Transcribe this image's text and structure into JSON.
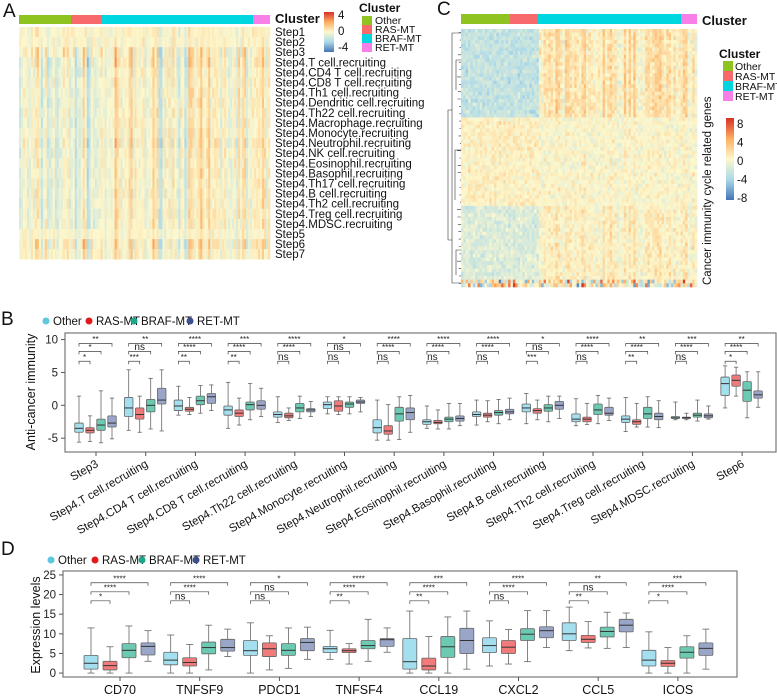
{
  "chart_data": [
    {
      "panel": "A",
      "type": "heatmap",
      "annotation_title": "Cluster",
      "legend_title": "Cluster",
      "clusters": [
        {
          "name": "Other",
          "color": "#8fc31f"
        },
        {
          "name": "RAS-MT",
          "color": "#f8696b"
        },
        {
          "name": "BRAF-MT",
          "color": "#00d6e0"
        },
        {
          "name": "RET-MT",
          "color": "#f87ee8"
        }
      ],
      "rows": [
        "Step1",
        "Step2",
        "Step3",
        "Step4.T cell.recruiting",
        "Step4.CD4 T cell.recruiting",
        "Step4.CD8 T cell.recruiting",
        "Step4.Th1 cell.recruiting",
        "Step4.Dendritic cell.recruiting",
        "Step4.Th22 cell.recruiting",
        "Step4.Macrophage.recruiting",
        "Step4.Monocyte.recruiting",
        "Step4.Neutrophil.recruiting",
        "Step4.NK cell.recruiting",
        "Step4.Eosinophil.recruiting",
        "Step4.Basophil.recruiting",
        "Step4.Th17 cell.recruiting",
        "Step4.B cell.recruiting",
        "Step4.Th2 cell.recruiting",
        "Step4.Treg cell.recruiting",
        "Step4.MDSC.recruiting",
        "Step5",
        "Step6",
        "Step7"
      ],
      "colorbar_ticks": [
        "4",
        "0",
        "-4"
      ],
      "color_range": [
        -4,
        4
      ]
    },
    {
      "panel": "C",
      "type": "heatmap",
      "annotation_title": "Cluster",
      "legend_title": "Cluster",
      "ylabel": "Cancer immunity cycle related genes",
      "clusters": [
        {
          "name": "Other",
          "color": "#8fc31f"
        },
        {
          "name": "RAS-MT",
          "color": "#f8696b"
        },
        {
          "name": "BRAF-MT",
          "color": "#00d6e0"
        },
        {
          "name": "RET-MT",
          "color": "#f87ee8"
        }
      ],
      "colorbar_ticks": [
        "8",
        "4",
        "0",
        "-4",
        "-8"
      ],
      "color_range": [
        -8,
        8
      ],
      "row_dendrogram": true
    },
    {
      "panel": "B",
      "type": "boxplot",
      "ylabel": "Anti-cancer immunity",
      "ylim": [
        -7.1,
        11
      ],
      "yticks": [
        "10",
        "5",
        "0",
        "-5"
      ],
      "legend": [
        {
          "name": "Other",
          "color": "#5bc8e0",
          "fill": "#a3dfee"
        },
        {
          "name": "RAS-MT",
          "color": "#e31a1c",
          "fill": "#f17b7b"
        },
        {
          "name": "BRAF-MT",
          "color": "#1aa88a",
          "fill": "#6ccab2"
        },
        {
          "name": "RET-MT",
          "color": "#3c4f8c",
          "fill": "#9aa6c8"
        }
      ],
      "categories": [
        "Step3",
        "Step4.T cell.recruiting",
        "Step4.CD4 T cell.recruiting",
        "Step4.CD8 T cell.recruiting",
        "Step4.Th22 cell.recruiting",
        "Step4.Monocyte.recruiting",
        "Step4.Neutrophil.recruiting",
        "Step4.Eosinophil.recruiting",
        "Step4.Basophil.recruiting",
        "Step4.B cell.recruiting",
        "Step4.Th2 cell.recruiting",
        "Step4.Treg cell.recruiting",
        "Step4.MDSC.recruiting",
        "Step6"
      ],
      "boxes_min_q1_med_q3_max": [
        [
          [
            -5.6,
            -4.1,
            -3.5,
            -2.7,
            1.4
          ],
          [
            -5.5,
            -4.2,
            -3.8,
            -3.4,
            -1.6
          ],
          [
            -5.7,
            -3.8,
            -3.0,
            -2.1,
            2.2
          ],
          [
            -5.1,
            -3.3,
            -2.7,
            -1.6,
            1.1
          ]
        ],
        [
          [
            -3.8,
            -1.7,
            -0.4,
            1.2,
            5.4
          ],
          [
            -4.1,
            -2.1,
            -1.4,
            -0.4,
            1.4
          ],
          [
            -3.6,
            -1.0,
            0.0,
            0.9,
            4.1
          ],
          [
            -3.9,
            0.2,
            0.8,
            2.6,
            5.4
          ]
        ],
        [
          [
            -1.5,
            -0.8,
            -0.1,
            0.8,
            2.9
          ],
          [
            -1.4,
            -0.9,
            -0.6,
            -0.3,
            1.2
          ],
          [
            -1.2,
            0.1,
            0.7,
            1.4,
            3.0
          ],
          [
            -0.8,
            0.3,
            1.3,
            1.8,
            3.1
          ]
        ],
        [
          [
            -3.5,
            -1.5,
            -0.7,
            -0.1,
            3.5
          ],
          [
            -3.0,
            -1.7,
            -1.2,
            -0.7,
            1.1
          ],
          [
            -2.2,
            -0.7,
            0.1,
            0.5,
            3.3
          ],
          [
            -1.7,
            -0.6,
            0.0,
            0.7,
            2.6
          ]
        ],
        [
          [
            -2.6,
            -1.8,
            -1.4,
            -1.0,
            1.3
          ],
          [
            -2.3,
            -1.9,
            -1.6,
            -1.2,
            -0.4
          ],
          [
            -2.0,
            -1.0,
            -0.4,
            0.3,
            1.4
          ],
          [
            -1.7,
            -1.0,
            -0.7,
            -0.5,
            0.6
          ]
        ],
        [
          [
            -1.3,
            -0.5,
            0.1,
            0.5,
            1.3
          ],
          [
            -1.4,
            -0.9,
            -0.1,
            0.7,
            1.3
          ],
          [
            -1.3,
            -0.3,
            0.2,
            0.5,
            1.3
          ],
          [
            -1.0,
            0.3,
            0.5,
            0.8,
            1.2
          ]
        ],
        [
          [
            -5.3,
            -4.2,
            -3.4,
            -2.2,
            0.8
          ],
          [
            -5.3,
            -4.4,
            -3.9,
            -3.1,
            0.1
          ],
          [
            -5.2,
            -2.4,
            -1.3,
            -0.3,
            1.3
          ],
          [
            -4.1,
            -2.2,
            -1.1,
            -0.4,
            1.5
          ]
        ],
        [
          [
            -3.5,
            -2.9,
            -2.5,
            -2.2,
            -0.1
          ],
          [
            -3.6,
            -2.8,
            -2.6,
            -2.3,
            -0.7
          ],
          [
            -3.6,
            -2.5,
            -2.1,
            -1.8,
            0.3
          ],
          [
            -3.1,
            -2.4,
            -2.0,
            -1.6,
            0.3
          ]
        ],
        [
          [
            -3.0,
            -1.7,
            -1.4,
            -1.0,
            0.8
          ],
          [
            -2.5,
            -1.8,
            -1.5,
            -1.2,
            0.7
          ],
          [
            -2.8,
            -1.5,
            -1.1,
            -0.8,
            0.9
          ],
          [
            -2.2,
            -1.3,
            -1.0,
            -0.6,
            1.1
          ]
        ],
        [
          [
            -2.8,
            -1.0,
            -0.4,
            0.2,
            1.8
          ],
          [
            -2.2,
            -1.2,
            -0.8,
            -0.5,
            0.8
          ],
          [
            -2.5,
            -0.9,
            -0.4,
            0.1,
            1.4
          ],
          [
            -2.0,
            -0.6,
            0.0,
            0.6,
            1.4
          ]
        ],
        [
          [
            -3.1,
            -2.5,
            -2.1,
            -1.3,
            1.0
          ],
          [
            -2.9,
            -2.5,
            -2.1,
            -1.8,
            0.3
          ],
          [
            -2.8,
            -1.4,
            -0.7,
            0.2,
            1.5
          ],
          [
            -2.3,
            -1.5,
            -1.2,
            -0.3,
            1.1
          ]
        ],
        [
          [
            -4.0,
            -2.6,
            -2.1,
            -1.6,
            1.2
          ],
          [
            -3.3,
            -2.9,
            -2.5,
            -2.2,
            0.3
          ],
          [
            -3.3,
            -2.0,
            -1.3,
            -0.3,
            1.3
          ],
          [
            -3.4,
            -2.2,
            -1.7,
            -1.2,
            0.7
          ]
        ],
        [
          [
            -2.2,
            -2.0,
            -1.9,
            -1.7,
            0.5
          ],
          [
            -2.2,
            -2.0,
            -1.9,
            -1.8,
            -1.2
          ],
          [
            -2.4,
            -1.8,
            -1.5,
            -1.2,
            0.8
          ],
          [
            -2.1,
            -1.9,
            -1.6,
            -1.3,
            -0.1
          ]
        ],
        [
          [
            -0.4,
            1.5,
            3.3,
            4.3,
            6.0
          ],
          [
            1.4,
            2.9,
            3.8,
            4.6,
            5.8
          ],
          [
            -1.9,
            0.6,
            2.3,
            3.6,
            5.1
          ],
          [
            -0.3,
            1.1,
            1.6,
            2.2,
            5.1
          ]
        ]
      ],
      "significance_vs_other": [
        [
          "*",
          "*",
          "**"
        ],
        [
          "***",
          "ns",
          "**"
        ],
        [
          "**",
          "****",
          "****"
        ],
        [
          "**",
          "****",
          "***"
        ],
        [
          "ns",
          "****",
          "****"
        ],
        [
          "ns",
          "ns",
          "*"
        ],
        [
          "ns",
          "****",
          "****"
        ],
        [
          "ns",
          "****",
          "****"
        ],
        [
          "ns",
          "****",
          "****"
        ],
        [
          "***",
          "ns",
          "*"
        ],
        [
          "ns",
          "****",
          "****"
        ],
        [
          "**",
          "****",
          "**"
        ],
        [
          "ns",
          "****",
          "***"
        ],
        [
          "*",
          "****",
          "**"
        ]
      ],
      "significance_bracket_levels": [
        6.7,
        8.2,
        9.4
      ]
    },
    {
      "panel": "D",
      "type": "boxplot",
      "ylabel": "Expression levels",
      "ylim": [
        -1,
        26
      ],
      "yticks": [
        "25",
        "20",
        "15",
        "10",
        "5",
        "0"
      ],
      "legend": [
        {
          "name": "Other",
          "color": "#5bc8e0",
          "fill": "#a3dfee"
        },
        {
          "name": "RAS-MT",
          "color": "#e31a1c",
          "fill": "#f17b7b"
        },
        {
          "name": "BRAF-MT",
          "color": "#1aa88a",
          "fill": "#6ccab2"
        },
        {
          "name": "RET-MT",
          "color": "#3c4f8c",
          "fill": "#9aa6c8"
        }
      ],
      "categories": [
        "CD70",
        "TNFSF9",
        "PDCD1",
        "TNFSF4",
        "CCL19",
        "CXCL2",
        "CCL5",
        "ICOS"
      ],
      "boxes_min_q1_med_q3_max": [
        [
          [
            0,
            1.0,
            2.5,
            4.5,
            11.5
          ],
          [
            0,
            0.8,
            1.9,
            3.0,
            6.7
          ],
          [
            0,
            3.9,
            5.8,
            7.5,
            12.0
          ],
          [
            3.0,
            4.6,
            6.8,
            7.7,
            10.8
          ]
        ],
        [
          [
            0,
            2.1,
            3.3,
            5.3,
            9.7
          ],
          [
            0,
            1.8,
            2.7,
            3.9,
            7.3
          ],
          [
            0.8,
            4.9,
            6.5,
            7.9,
            12.2
          ],
          [
            4.2,
            5.6,
            6.5,
            8.6,
            11.2
          ]
        ],
        [
          [
            0,
            4.5,
            5.7,
            8.3,
            12.8
          ],
          [
            0.8,
            4.2,
            6.2,
            7.7,
            9.5
          ],
          [
            1.2,
            4.5,
            5.8,
            7.5,
            11.5
          ],
          [
            3.5,
            5.7,
            7.8,
            8.8,
            11.7
          ]
        ],
        [
          [
            3.5,
            5.2,
            6.2,
            6.8,
            10.9
          ],
          [
            2.3,
            5.2,
            5.7,
            6.2,
            7.5
          ],
          [
            3.0,
            6.2,
            7.0,
            8.3,
            13.7
          ],
          [
            5.3,
            6.8,
            8.5,
            8.8,
            11.5
          ]
        ],
        [
          [
            0,
            1.0,
            2.9,
            8.8,
            15.8
          ],
          [
            0,
            0.8,
            1.8,
            3.8,
            9.3
          ],
          [
            0,
            4.0,
            6.7,
            9.3,
            14.3
          ],
          [
            1.0,
            5.0,
            8.3,
            11.4,
            15.8
          ]
        ],
        [
          [
            1.8,
            5.2,
            7.0,
            9.0,
            13.3
          ],
          [
            2.3,
            5.0,
            6.6,
            8.3,
            11.1
          ],
          [
            2.9,
            8.3,
            9.9,
            11.3,
            15.9
          ],
          [
            6.5,
            9.0,
            10.8,
            11.8,
            15.9
          ]
        ],
        [
          [
            5.7,
            8.3,
            10.0,
            12.8,
            16.8
          ],
          [
            6.4,
            7.8,
            8.6,
            9.6,
            13.1
          ],
          [
            6.3,
            9.2,
            10.6,
            11.7,
            15.5
          ],
          [
            6.5,
            10.5,
            12.2,
            13.7,
            15.3
          ]
        ],
        [
          [
            0,
            1.8,
            3.3,
            5.8,
            10.5
          ],
          [
            0,
            1.7,
            2.5,
            3.2,
            6.5
          ],
          [
            0,
            3.8,
            5.3,
            6.7,
            9.5
          ],
          [
            1.0,
            4.5,
            6.3,
            7.7,
            11.2
          ]
        ]
      ],
      "significance_vs_other": [
        [
          "*",
          "****",
          "****"
        ],
        [
          "ns",
          "****",
          "****"
        ],
        [
          "ns",
          "ns",
          "*"
        ],
        [
          "**",
          "****",
          "****"
        ],
        [
          "**",
          "****",
          "***"
        ],
        [
          "ns",
          "****",
          "****"
        ],
        [
          "**",
          "ns",
          "**"
        ],
        [
          "*",
          "****",
          "***"
        ]
      ],
      "significance_bracket_levels": [
        18.4,
        20.7,
        23.0
      ]
    }
  ],
  "panels": {
    "A": "A",
    "B": "B",
    "C": "C",
    "D": "D"
  }
}
